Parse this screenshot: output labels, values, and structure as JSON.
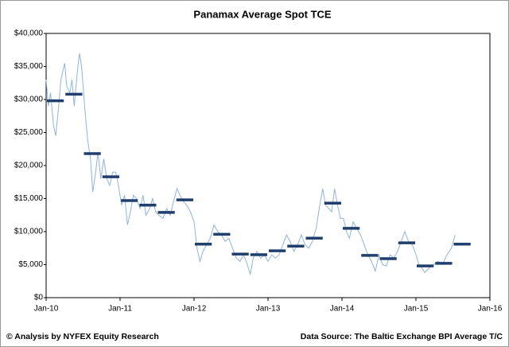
{
  "chart_data": {
    "type": "line",
    "title": "Panamax Average Spot TCE",
    "credit": "© Analysis by NYFEX Equity Research",
    "source": "Data Source: The Baltic Exchange BPI Average T/C",
    "xlim": [
      2010,
      2016
    ],
    "xticks": [
      {
        "value": 2010,
        "label": "Jan-10"
      },
      {
        "value": 2011,
        "label": "Jan-11"
      },
      {
        "value": 2012,
        "label": "Jan-12"
      },
      {
        "value": 2013,
        "label": "Jan-13"
      },
      {
        "value": 2014,
        "label": "Jan-14"
      },
      {
        "value": 2015,
        "label": "Jan-15"
      },
      {
        "value": 2016,
        "label": "Jan-16"
      }
    ],
    "ylim": [
      0,
      40000
    ],
    "yticks": [
      {
        "value": 0,
        "label": "$0"
      },
      {
        "value": 5000,
        "label": "$5,000"
      },
      {
        "value": 10000,
        "label": "$10,000"
      },
      {
        "value": 15000,
        "label": "$15,000"
      },
      {
        "value": 20000,
        "label": "$20,000"
      },
      {
        "value": 25000,
        "label": "$25,000"
      },
      {
        "value": 30000,
        "label": "$30,000"
      },
      {
        "value": 35000,
        "label": "$35,000"
      },
      {
        "value": 40000,
        "label": "$40,000"
      }
    ],
    "grid": false,
    "series": [
      {
        "color": "#8db4e2",
        "style": "line",
        "x": [
          2010.0,
          2010.03,
          2010.06,
          2010.1,
          2010.13,
          2010.17,
          2010.2,
          2010.25,
          2010.28,
          2010.32,
          2010.35,
          2010.38,
          2010.42,
          2010.45,
          2010.48,
          2010.52,
          2010.56,
          2010.6,
          2010.63,
          2010.67,
          2010.7,
          2010.74,
          2010.78,
          2010.82,
          2010.86,
          2010.9,
          2010.94,
          2010.97,
          2011.02,
          2011.06,
          2011.1,
          2011.14,
          2011.18,
          2011.22,
          2011.27,
          2011.31,
          2011.35,
          2011.4,
          2011.44,
          2011.48,
          2011.52,
          2011.58,
          2011.63,
          2011.68,
          2011.72,
          2011.77,
          2011.81,
          2011.86,
          2011.9,
          2011.95,
          2012.0,
          2012.04,
          2012.08,
          2012.12,
          2012.17,
          2012.22,
          2012.27,
          2012.32,
          2012.37,
          2012.42,
          2012.47,
          2012.52,
          2012.57,
          2012.62,
          2012.67,
          2012.72,
          2012.76,
          2012.8,
          2012.85,
          2012.9,
          2012.95,
          2013.0,
          2013.05,
          2013.1,
          2013.15,
          2013.2,
          2013.25,
          2013.3,
          2013.35,
          2013.4,
          2013.45,
          2013.5,
          2013.55,
          2013.6,
          2013.65,
          2013.7,
          2013.74,
          2013.78,
          2013.82,
          2013.86,
          2013.9,
          2013.94,
          2013.98,
          2014.02,
          2014.06,
          2014.1,
          2014.15,
          2014.2,
          2014.25,
          2014.3,
          2014.35,
          2014.4,
          2014.45,
          2014.5,
          2014.55,
          2014.6,
          2014.65,
          2014.7,
          2014.75,
          2014.8,
          2014.85,
          2014.9,
          2014.95,
          2015.0,
          2015.04,
          2015.08,
          2015.12,
          2015.18,
          2015.24,
          2015.3,
          2015.36,
          2015.42,
          2015.48,
          2015.53
        ],
        "values": [
          33000,
          29000,
          31000,
          26000,
          24500,
          29000,
          33000,
          35500,
          32000,
          31000,
          33000,
          29000,
          34000,
          37000,
          35000,
          29000,
          24000,
          21000,
          16000,
          19000,
          22000,
          18000,
          21000,
          18000,
          17000,
          19000,
          19000,
          17500,
          14000,
          15500,
          11000,
          13000,
          15500,
          15000,
          13500,
          15500,
          12500,
          13500,
          15000,
          13000,
          12500,
          12000,
          13500,
          12500,
          14500,
          16500,
          15500,
          14500,
          14000,
          13000,
          11500,
          7500,
          5500,
          7000,
          8000,
          9000,
          11000,
          10000,
          9500,
          8500,
          9000,
          7500,
          6000,
          5500,
          6500,
          5000,
          3500,
          6000,
          7000,
          6000,
          6500,
          5500,
          6500,
          6000,
          6500,
          8000,
          9500,
          8500,
          7000,
          8000,
          9500,
          8000,
          7500,
          8500,
          10500,
          14000,
          16500,
          14000,
          13500,
          13000,
          16500,
          14000,
          12000,
          12000,
          10000,
          9000,
          11500,
          10500,
          9500,
          8000,
          6500,
          5500,
          4000,
          6500,
          5000,
          4800,
          6500,
          6000,
          7000,
          8500,
          10000,
          8500,
          8000,
          6500,
          5000,
          4500,
          3800,
          4500,
          5000,
          5500,
          5000,
          6500,
          7500,
          9500
        ]
      },
      {
        "color": "#1f3f6e",
        "style": "quarterly",
        "x": [
          2010.0,
          2010.25,
          2010.5,
          2010.75,
          2011.0,
          2011.25,
          2011.5,
          2011.75,
          2012.0,
          2012.25,
          2012.5,
          2012.75,
          2013.0,
          2013.25,
          2013.5,
          2013.75,
          2014.0,
          2014.25,
          2014.5,
          2014.75,
          2015.0,
          2015.25,
          2015.5
        ],
        "values": [
          29800,
          30800,
          21800,
          18300,
          14700,
          14000,
          12900,
          14800,
          8100,
          9600,
          6600,
          6500,
          7100,
          7800,
          9000,
          14300,
          10500,
          6400,
          5900,
          8300,
          4800,
          5200,
          8100
        ]
      }
    ]
  }
}
